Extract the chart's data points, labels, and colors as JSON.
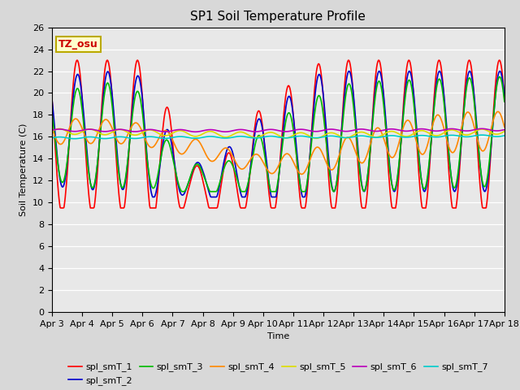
{
  "title": "SP1 Soil Temperature Profile",
  "xlabel": "Time",
  "ylabel": "Soil Temperature (C)",
  "ylim": [
    0,
    26
  ],
  "yticks": [
    0,
    2,
    4,
    6,
    8,
    10,
    12,
    14,
    16,
    18,
    20,
    22,
    24,
    26
  ],
  "xtick_labels": [
    "Apr 3",
    "Apr 4",
    "Apr 5",
    "Apr 6",
    "Apr 7",
    "Apr 8",
    "Apr 9",
    "Apr 10",
    "Apr 11",
    "Apr 12",
    "Apr 13",
    "Apr 14",
    "Apr 15",
    "Apr 16",
    "Apr 17",
    "Apr 18"
  ],
  "annotation_text": "TZ_osu",
  "annotation_color": "#cc0000",
  "annotation_bg": "#ffffcc",
  "annotation_border": "#bbaa00",
  "series_colors": {
    "spl_smT_1": "#ff0000",
    "spl_smT_2": "#0000cc",
    "spl_smT_3": "#00bb00",
    "spl_smT_4": "#ff8800",
    "spl_smT_5": "#dddd00",
    "spl_smT_6": "#bb00bb",
    "spl_smT_7": "#00cccc"
  },
  "bg_color": "#d8d8d8",
  "plot_bg": "#e8e8e8",
  "title_fontsize": 11,
  "axis_fontsize": 8,
  "legend_fontsize": 8
}
